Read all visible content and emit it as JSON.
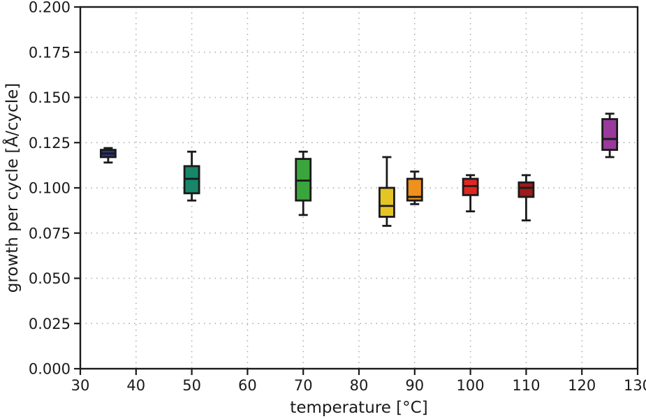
{
  "figure": {
    "background": "#ffffff",
    "axis_color": "#1a1a1a",
    "grid_color": "#a8a8a8"
  },
  "chart_data": {
    "type": "boxplot",
    "title": "",
    "xlabel": "temperature [°C]",
    "ylabel": "growth per cycle [Å/cycle]",
    "xlim": [
      30,
      130
    ],
    "ylim": [
      0,
      0.2
    ],
    "grid": "dotted, both axes",
    "legend": "none",
    "x_ticks": [
      {
        "value": 30,
        "label": "30"
      },
      {
        "value": 40,
        "label": "40"
      },
      {
        "value": 50,
        "label": "50"
      },
      {
        "value": 60,
        "label": "60"
      },
      {
        "value": 70,
        "label": "70"
      },
      {
        "value": 80,
        "label": "80"
      },
      {
        "value": 90,
        "label": "90"
      },
      {
        "value": 100,
        "label": "100"
      },
      {
        "value": 110,
        "label": "110"
      },
      {
        "value": 120,
        "label": "120"
      },
      {
        "value": 130,
        "label": "130"
      }
    ],
    "y_ticks": [
      {
        "value": 0.0,
        "label": "0.000"
      },
      {
        "value": 0.025,
        "label": "0.025"
      },
      {
        "value": 0.05,
        "label": "0.050"
      },
      {
        "value": 0.075,
        "label": "0.075"
      },
      {
        "value": 0.1,
        "label": "0.100"
      },
      {
        "value": 0.125,
        "label": "0.125"
      },
      {
        "value": 0.15,
        "label": "0.150"
      },
      {
        "value": 0.175,
        "label": "0.175"
      },
      {
        "value": 0.2,
        "label": "0.200"
      }
    ],
    "boxes": [
      {
        "x": 35,
        "whisker_low": 0.114,
        "q1": 0.117,
        "median": 0.119,
        "q3": 0.121,
        "whisker_high": 0.122,
        "color": "#2b3386"
      },
      {
        "x": 50,
        "whisker_low": 0.093,
        "q1": 0.097,
        "median": 0.105,
        "q3": 0.112,
        "whisker_high": 0.12,
        "color": "#17876b"
      },
      {
        "x": 70,
        "whisker_low": 0.085,
        "q1": 0.093,
        "median": 0.104,
        "q3": 0.116,
        "whisker_high": 0.12,
        "color": "#3aa53c"
      },
      {
        "x": 85,
        "whisker_low": 0.079,
        "q1": 0.084,
        "median": 0.09,
        "q3": 0.1,
        "whisker_high": 0.117,
        "color": "#e4c525"
      },
      {
        "x": 90,
        "whisker_low": 0.091,
        "q1": 0.093,
        "median": 0.095,
        "q3": 0.105,
        "whisker_high": 0.109,
        "color": "#f0911f"
      },
      {
        "x": 100,
        "whisker_low": 0.087,
        "q1": 0.096,
        "median": 0.101,
        "q3": 0.105,
        "whisker_high": 0.107,
        "color": "#e2261f"
      },
      {
        "x": 110,
        "whisker_low": 0.082,
        "q1": 0.095,
        "median": 0.1,
        "q3": 0.103,
        "whisker_high": 0.107,
        "color": "#9c1b1b"
      },
      {
        "x": 125,
        "whisker_low": 0.117,
        "q1": 0.121,
        "median": 0.127,
        "q3": 0.138,
        "whisker_high": 0.141,
        "color": "#993a9c"
      }
    ]
  }
}
